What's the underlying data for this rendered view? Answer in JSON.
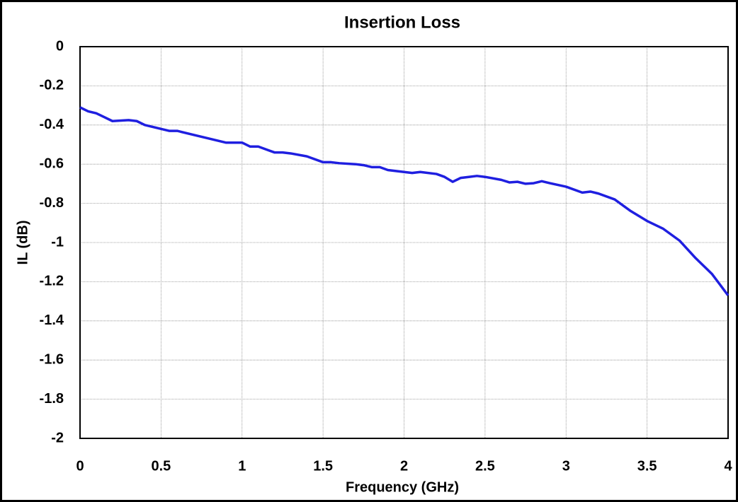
{
  "chart_data": {
    "type": "line",
    "title": "Insertion Loss",
    "xlabel": "Frequency (GHz)",
    "ylabel": "IL (dB)",
    "xlim": [
      0,
      4
    ],
    "xticks": [
      0,
      0.5,
      1,
      1.5,
      2,
      2.5,
      3,
      3.5,
      4
    ],
    "ylim": [
      -2,
      0
    ],
    "yticks": [
      0,
      -0.2,
      -0.4,
      -0.6,
      -0.8,
      -1,
      -1.2,
      -1.4,
      -1.6,
      -1.8,
      -2
    ],
    "grid": true,
    "series": [
      {
        "name": "IL",
        "color": "#1f1fe0",
        "x": [
          0,
          0.05,
          0.1,
          0.15,
          0.2,
          0.3,
          0.35,
          0.4,
          0.45,
          0.5,
          0.55,
          0.6,
          0.7,
          0.75,
          0.8,
          0.9,
          1.0,
          1.05,
          1.1,
          1.2,
          1.25,
          1.3,
          1.4,
          1.5,
          1.55,
          1.6,
          1.7,
          1.75,
          1.8,
          1.85,
          1.9,
          2.0,
          2.05,
          2.1,
          2.2,
          2.25,
          2.3,
          2.35,
          2.4,
          2.45,
          2.5,
          2.6,
          2.65,
          2.7,
          2.75,
          2.8,
          2.85,
          2.9,
          3.0,
          3.1,
          3.15,
          3.2,
          3.3,
          3.4,
          3.5,
          3.6,
          3.7,
          3.8,
          3.9,
          4.0
        ],
        "values": [
          -0.31,
          -0.33,
          -0.34,
          -0.36,
          -0.38,
          -0.375,
          -0.38,
          -0.4,
          -0.41,
          -0.42,
          -0.43,
          -0.43,
          -0.45,
          -0.46,
          -0.47,
          -0.49,
          -0.49,
          -0.51,
          -0.51,
          -0.54,
          -0.54,
          -0.545,
          -0.56,
          -0.59,
          -0.59,
          -0.595,
          -0.6,
          -0.605,
          -0.615,
          -0.615,
          -0.63,
          -0.64,
          -0.645,
          -0.64,
          -0.65,
          -0.665,
          -0.69,
          -0.67,
          -0.665,
          -0.66,
          -0.665,
          -0.68,
          -0.693,
          -0.69,
          -0.7,
          -0.697,
          -0.687,
          -0.697,
          -0.715,
          -0.745,
          -0.74,
          -0.75,
          -0.78,
          -0.84,
          -0.89,
          -0.93,
          -0.99,
          -1.08,
          -1.16,
          -1.27
        ]
      }
    ]
  }
}
